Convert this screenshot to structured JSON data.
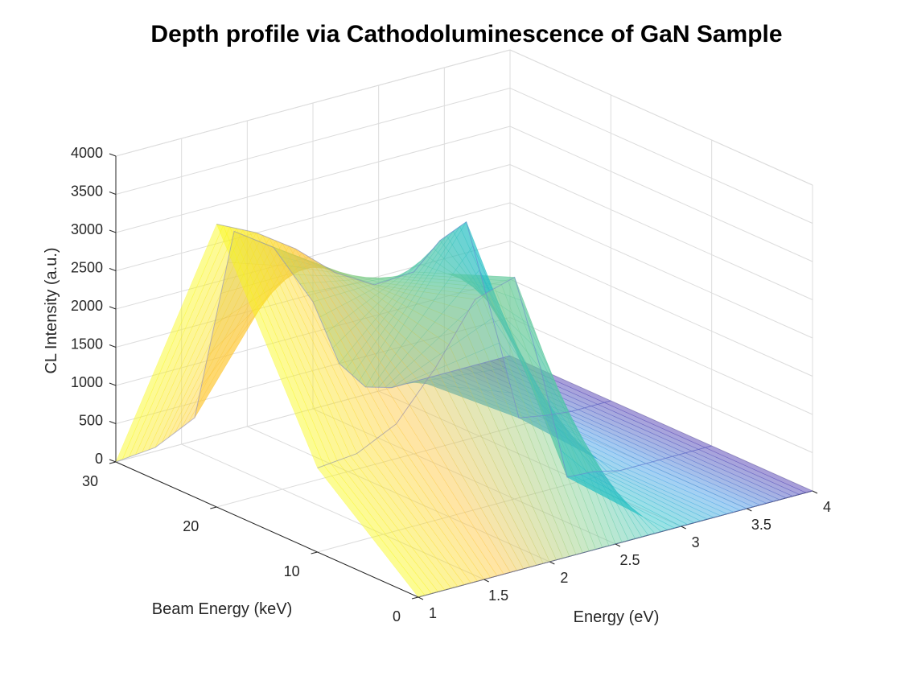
{
  "chart_data": {
    "type": "surface3d",
    "title": "Depth profile via Cathodoluminescence of GaN Sample",
    "xlabel": "Energy (eV)",
    "ylabel": "Beam Energy (keV)",
    "zlabel": "CL Intensity (a.u.)",
    "xlim": [
      1,
      4
    ],
    "ylim": [
      0,
      30
    ],
    "zlim": [
      0,
      4000
    ],
    "x_ticks": [
      "1",
      "1.5",
      "2",
      "2.5",
      "3",
      "3.5",
      "4"
    ],
    "y_ticks": [
      "0",
      "10",
      "20",
      "30"
    ],
    "z_ticks": [
      "0",
      "500",
      "1000",
      "1500",
      "2000",
      "2500",
      "3000",
      "3500",
      "4000"
    ],
    "grid": true,
    "colormap": "parula",
    "series": [
      {
        "beam_energy": 0,
        "x": [
          1.0,
          1.3,
          1.6,
          1.9,
          2.2,
          2.5,
          2.7,
          2.9,
          3.1,
          3.3,
          3.5,
          3.7,
          3.9
        ],
        "values": [
          0,
          0,
          0,
          0,
          0,
          0,
          0,
          0,
          0,
          0,
          0,
          0,
          0
        ]
      },
      {
        "beam_energy": 10,
        "x": [
          1.0,
          1.3,
          1.6,
          1.9,
          2.2,
          2.5,
          2.7,
          2.9,
          3.1,
          3.3,
          3.5,
          3.7,
          3.9
        ],
        "values": [
          1100,
          1150,
          1400,
          2000,
          2750,
          2900,
          1600,
          100,
          80,
          0,
          0,
          0,
          0
        ]
      },
      {
        "beam_energy": 20,
        "x": [
          1.0,
          1.3,
          1.6,
          1.9,
          2.2,
          2.5,
          2.7,
          2.9,
          3.1,
          3.3,
          3.5,
          3.7,
          3.9
        ],
        "values": [
          3700,
          3450,
          3100,
          2650,
          2350,
          2380,
          2700,
          2850,
          1500,
          100,
          40,
          0,
          0
        ]
      },
      {
        "beam_energy": 30,
        "x": [
          1.0,
          1.3,
          1.6,
          1.9,
          2.2,
          2.5,
          2.7,
          2.9,
          3.1,
          3.3,
          3.5,
          3.7,
          3.9
        ],
        "values": [
          0,
          50,
          300,
          2600,
          2250,
          1400,
          500,
          100,
          0,
          0,
          0,
          0,
          0
        ]
      }
    ]
  }
}
